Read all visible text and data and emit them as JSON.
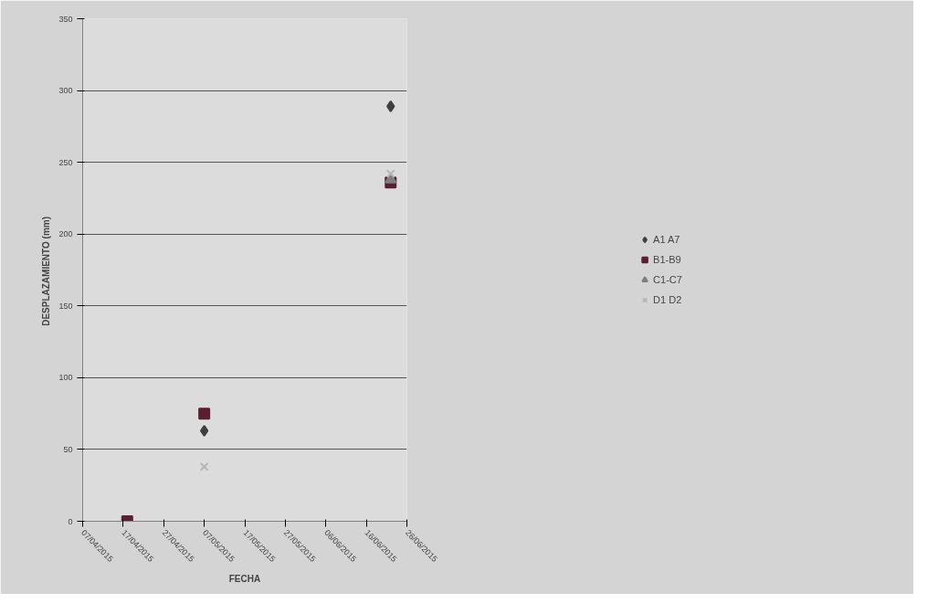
{
  "chart_data": {
    "type": "scatter",
    "xlabel": "FECHA",
    "ylabel": "DESPLAZAMIENTO  (mm)",
    "x": [
      "2015-04-18",
      "2015-05-07",
      "2015-06-22"
    ],
    "series": [
      {
        "name": "A1 A7",
        "color": "#3f3f3f",
        "marker": "diamond",
        "values": [
          null,
          63,
          289
        ]
      },
      {
        "name": "B1-B9",
        "color": "#5a1f30",
        "marker": "square",
        "values": [
          0,
          75,
          236
        ]
      },
      {
        "name": "C1-C7",
        "color": "#7f7f7f",
        "marker": "triangle",
        "values": [
          null,
          null,
          238
        ]
      },
      {
        "name": "D1 D2",
        "color": "#b5b5b5",
        "marker": "cross",
        "values": [
          null,
          38,
          242
        ]
      }
    ],
    "xlim": [
      "2015-04-07",
      "2015-06-26"
    ],
    "xticks": [
      {
        "value": "2015-04-07",
        "label": "07/04/2015"
      },
      {
        "value": "2015-04-17",
        "label": "17/04/2015"
      },
      {
        "value": "2015-04-27",
        "label": "27/04/2015"
      },
      {
        "value": "2015-05-07",
        "label": "07/05/2015"
      },
      {
        "value": "2015-05-17",
        "label": "17/05/2015"
      },
      {
        "value": "2015-05-27",
        "label": "27/05/2015"
      },
      {
        "value": "2015-06-06",
        "label": "06/06/2015"
      },
      {
        "value": "2015-06-16",
        "label": "16/06/2015"
      },
      {
        "value": "2015-06-26",
        "label": "26/06/2015"
      }
    ],
    "ylim": [
      0,
      350
    ],
    "yticks": [
      0,
      50,
      100,
      150,
      200,
      250,
      300,
      350
    ],
    "grid": "y",
    "legend": "right"
  }
}
